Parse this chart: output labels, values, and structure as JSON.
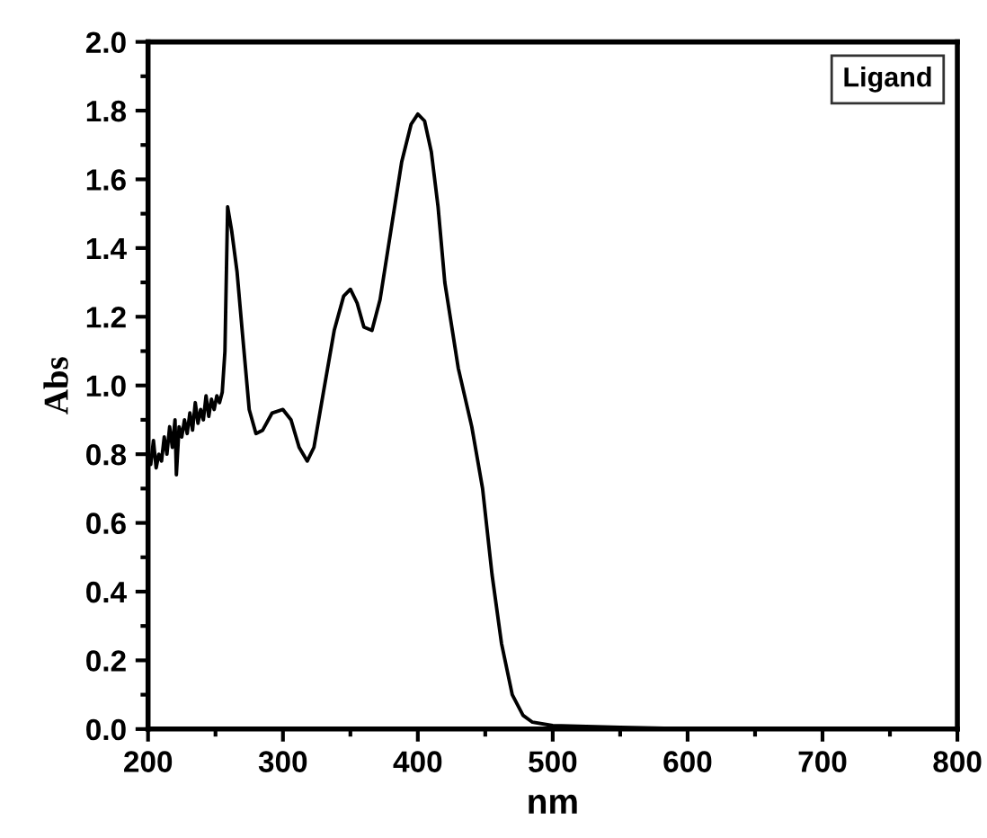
{
  "chart_data": {
    "type": "line",
    "xlabel": "nm",
    "ylabel": "Abs",
    "xlim": [
      200,
      800
    ],
    "xticks": [
      200,
      300,
      400,
      500,
      600,
      700,
      800
    ],
    "ylim": [
      0,
      2.0
    ],
    "yticks": [
      {
        "value": 0,
        "label": "0.0"
      },
      0.2,
      0.4,
      0.6,
      0.8,
      {
        "value": 1,
        "label": "1.0"
      },
      1.2,
      1.4,
      1.6,
      1.8,
      {
        "value": 2,
        "label": "2.0"
      }
    ],
    "grid": false,
    "legend": "top right",
    "marker": "none",
    "line_style": "solid",
    "series": [
      {
        "name": "Ligand",
        "color": "#000000",
        "x": [
          200,
          202,
          204,
          206,
          208,
          210,
          212,
          214,
          216,
          218,
          220,
          221,
          223,
          225,
          227,
          229,
          231,
          233,
          235,
          237,
          239,
          241,
          243,
          245,
          247,
          249,
          251,
          253,
          255,
          257,
          259,
          262,
          266,
          270,
          275,
          280,
          285,
          292,
          300,
          306,
          312,
          318,
          323,
          330,
          338,
          345,
          350,
          355,
          360,
          366,
          372,
          380,
          388,
          395,
          400,
          405,
          410,
          415,
          420,
          430,
          440,
          448,
          455,
          462,
          470,
          478,
          485,
          500,
          550,
          600,
          612
        ],
        "values": [
          0.8,
          0.77,
          0.84,
          0.76,
          0.8,
          0.78,
          0.85,
          0.8,
          0.88,
          0.82,
          0.9,
          0.74,
          0.88,
          0.85,
          0.9,
          0.86,
          0.92,
          0.87,
          0.95,
          0.89,
          0.93,
          0.9,
          0.97,
          0.91,
          0.96,
          0.93,
          0.97,
          0.95,
          0.98,
          1.1,
          1.52,
          1.45,
          1.33,
          1.15,
          0.93,
          0.86,
          0.87,
          0.92,
          0.93,
          0.9,
          0.82,
          0.78,
          0.82,
          0.98,
          1.16,
          1.26,
          1.28,
          1.24,
          1.17,
          1.16,
          1.25,
          1.45,
          1.65,
          1.76,
          1.79,
          1.77,
          1.68,
          1.52,
          1.3,
          1.05,
          0.88,
          0.7,
          0.45,
          0.25,
          0.1,
          0.04,
          0.02,
          0.01,
          0.005,
          0.001,
          0.0
        ]
      }
    ]
  }
}
